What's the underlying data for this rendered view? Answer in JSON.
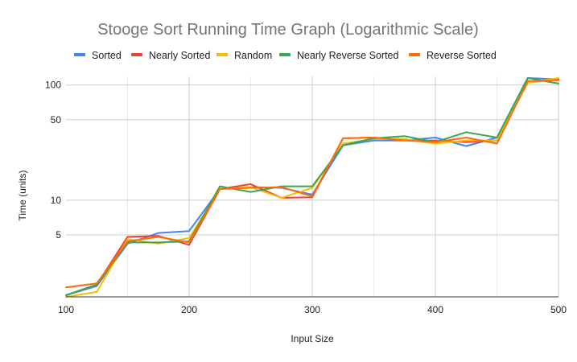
{
  "chart_data": {
    "type": "line",
    "title": "Stooge Sort Running Time Graph (Logarithmic Scale)",
    "xlabel": "Input Size",
    "ylabel": "Time (units)",
    "x_scale": "linear",
    "y_scale": "log",
    "xlim": [
      100,
      500
    ],
    "ylim": [
      1.45,
      115
    ],
    "x_ticks": [
      100,
      200,
      300,
      400,
      500
    ],
    "y_ticks": [
      5,
      10,
      50,
      100
    ],
    "grid": true,
    "legend_position": "top",
    "x": [
      100,
      125,
      150,
      175,
      200,
      225,
      250,
      275,
      300,
      325,
      350,
      375,
      400,
      425,
      450,
      475,
      500
    ],
    "series": [
      {
        "name": "Sorted",
        "color": "#4285F4",
        "values": [
          1.5,
          1.8,
          4.2,
          5.2,
          5.4,
          12.5,
          13.0,
          12.8,
          11.2,
          30.0,
          33.0,
          33.0,
          35.0,
          29.5,
          35.0,
          115,
          112
        ]
      },
      {
        "name": "Nearly Sorted",
        "color": "#EA4335",
        "values": [
          1.5,
          1.85,
          4.8,
          4.9,
          4.1,
          12.5,
          13.8,
          10.5,
          10.6,
          34.5,
          35.0,
          33.0,
          33.0,
          32.0,
          33.0,
          105,
          113
        ]
      },
      {
        "name": "Random",
        "color": "#FBBC04",
        "values": [
          1.45,
          1.6,
          4.6,
          4.2,
          4.7,
          12.5,
          13.0,
          10.5,
          12.8,
          31.0,
          34.0,
          34.0,
          31.0,
          33.0,
          33.0,
          105,
          115
        ]
      },
      {
        "name": "Nearly Reverse Sorted",
        "color": "#34A853",
        "values": [
          1.5,
          1.85,
          4.3,
          4.3,
          4.4,
          13.2,
          11.8,
          13.2,
          13.2,
          30.0,
          34.5,
          36.0,
          32.0,
          39.0,
          35.0,
          115,
          103
        ]
      },
      {
        "name": "Reverse Sorted",
        "color": "#FF6D01",
        "values": [
          1.75,
          1.9,
          4.4,
          4.8,
          4.3,
          12.5,
          12.8,
          13.0,
          10.8,
          34.5,
          35.0,
          33.0,
          32.0,
          35.0,
          31.0,
          108,
          110
        ]
      }
    ]
  }
}
